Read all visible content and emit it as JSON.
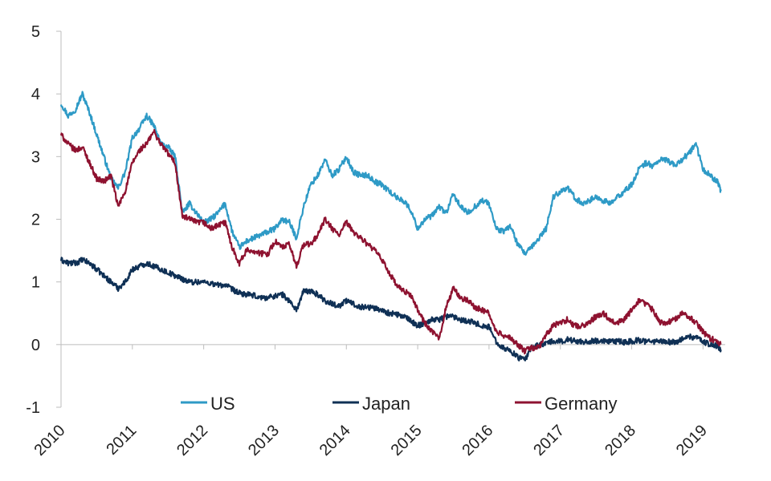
{
  "chart_data": {
    "type": "line",
    "title": "",
    "xlabel": "",
    "ylabel": "",
    "xlim": [
      2010.0,
      2019.3
    ],
    "ylim": [
      -1,
      5
    ],
    "x_ticks": [
      "2010",
      "2011",
      "2012",
      "2013",
      "2014",
      "2015",
      "2016",
      "2017",
      "2018",
      "2019"
    ],
    "y_ticks": [
      "5",
      "4",
      "3",
      "2",
      "1",
      "0",
      "-1"
    ],
    "grid": false,
    "legend_position": "bottom",
    "series": [
      {
        "name": "US",
        "color": "#2E9AC6",
        "x": [
          2010.0,
          2010.1,
          2010.2,
          2010.3,
          2010.4,
          2010.5,
          2010.6,
          2010.7,
          2010.8,
          2010.9,
          2011.0,
          2011.1,
          2011.2,
          2011.3,
          2011.4,
          2011.5,
          2011.6,
          2011.7,
          2011.8,
          2011.9,
          2012.0,
          2012.1,
          2012.2,
          2012.3,
          2012.4,
          2012.5,
          2012.6,
          2012.7,
          2012.8,
          2012.9,
          2013.0,
          2013.1,
          2013.2,
          2013.3,
          2013.4,
          2013.5,
          2013.6,
          2013.7,
          2013.8,
          2013.9,
          2014.0,
          2014.1,
          2014.2,
          2014.3,
          2014.4,
          2014.5,
          2014.6,
          2014.7,
          2014.8,
          2014.9,
          2015.0,
          2015.1,
          2015.2,
          2015.3,
          2015.4,
          2015.5,
          2015.6,
          2015.7,
          2015.8,
          2015.9,
          2016.0,
          2016.1,
          2016.2,
          2016.3,
          2016.4,
          2016.5,
          2016.6,
          2016.7,
          2016.8,
          2016.9,
          2017.0,
          2017.1,
          2017.2,
          2017.3,
          2017.4,
          2017.5,
          2017.6,
          2017.7,
          2017.8,
          2017.9,
          2018.0,
          2018.1,
          2018.2,
          2018.3,
          2018.4,
          2018.5,
          2018.6,
          2018.7,
          2018.8,
          2018.9,
          2019.0,
          2019.1,
          2019.2,
          2019.25
        ],
        "values": [
          3.85,
          3.65,
          3.75,
          4.0,
          3.7,
          3.35,
          3.0,
          2.65,
          2.5,
          2.75,
          3.3,
          3.45,
          3.65,
          3.5,
          3.2,
          3.15,
          3.0,
          2.1,
          2.25,
          2.1,
          1.95,
          2.0,
          2.1,
          2.25,
          1.8,
          1.55,
          1.65,
          1.7,
          1.75,
          1.8,
          1.85,
          2.0,
          1.95,
          1.7,
          2.2,
          2.55,
          2.7,
          2.95,
          2.7,
          2.8,
          3.0,
          2.75,
          2.7,
          2.7,
          2.6,
          2.55,
          2.45,
          2.35,
          2.3,
          2.15,
          1.85,
          2.0,
          2.05,
          2.2,
          2.1,
          2.4,
          2.2,
          2.1,
          2.2,
          2.3,
          2.25,
          1.85,
          1.8,
          1.9,
          1.6,
          1.45,
          1.55,
          1.7,
          1.85,
          2.35,
          2.45,
          2.5,
          2.35,
          2.25,
          2.3,
          2.35,
          2.3,
          2.25,
          2.35,
          2.45,
          2.55,
          2.8,
          2.9,
          2.85,
          2.95,
          2.95,
          2.85,
          2.95,
          3.05,
          3.2,
          2.8,
          2.7,
          2.6,
          2.45
        ]
      },
      {
        "name": "Japan",
        "color": "#0F3055",
        "x": [
          2010.0,
          2010.1,
          2010.2,
          2010.3,
          2010.4,
          2010.5,
          2010.6,
          2010.7,
          2010.8,
          2010.9,
          2011.0,
          2011.1,
          2011.2,
          2011.3,
          2011.4,
          2011.5,
          2011.6,
          2011.7,
          2011.8,
          2011.9,
          2012.0,
          2012.1,
          2012.2,
          2012.3,
          2012.4,
          2012.5,
          2012.6,
          2012.7,
          2012.8,
          2012.9,
          2013.0,
          2013.1,
          2013.2,
          2013.3,
          2013.4,
          2013.5,
          2013.6,
          2013.7,
          2013.8,
          2013.9,
          2014.0,
          2014.1,
          2014.2,
          2014.3,
          2014.4,
          2014.5,
          2014.6,
          2014.7,
          2014.8,
          2014.9,
          2015.0,
          2015.1,
          2015.2,
          2015.3,
          2015.4,
          2015.5,
          2015.6,
          2015.7,
          2015.8,
          2015.9,
          2016.0,
          2016.1,
          2016.2,
          2016.3,
          2016.4,
          2016.5,
          2016.6,
          2016.7,
          2016.8,
          2016.9,
          2017.0,
          2017.1,
          2017.2,
          2017.3,
          2017.4,
          2017.5,
          2017.6,
          2017.7,
          2017.8,
          2017.9,
          2018.0,
          2018.1,
          2018.2,
          2018.3,
          2018.4,
          2018.5,
          2018.6,
          2018.7,
          2018.8,
          2018.9,
          2019.0,
          2019.1,
          2019.2,
          2019.25
        ],
        "values": [
          1.35,
          1.3,
          1.3,
          1.35,
          1.3,
          1.2,
          1.1,
          1.0,
          0.9,
          1.0,
          1.2,
          1.25,
          1.3,
          1.25,
          1.2,
          1.15,
          1.1,
          1.05,
          1.0,
          1.0,
          1.0,
          0.98,
          0.95,
          0.95,
          0.88,
          0.82,
          0.8,
          0.78,
          0.75,
          0.75,
          0.78,
          0.8,
          0.7,
          0.55,
          0.85,
          0.85,
          0.8,
          0.7,
          0.65,
          0.62,
          0.7,
          0.65,
          0.6,
          0.6,
          0.58,
          0.55,
          0.5,
          0.48,
          0.45,
          0.38,
          0.3,
          0.35,
          0.4,
          0.4,
          0.45,
          0.45,
          0.4,
          0.38,
          0.35,
          0.3,
          0.28,
          0.05,
          -0.05,
          -0.1,
          -0.2,
          -0.25,
          -0.05,
          0.0,
          0.02,
          0.05,
          0.05,
          0.08,
          0.06,
          0.05,
          0.05,
          0.06,
          0.05,
          0.04,
          0.05,
          0.04,
          0.05,
          0.07,
          0.05,
          0.05,
          0.05,
          0.04,
          0.04,
          0.08,
          0.12,
          0.12,
          0.05,
          0.0,
          -0.02,
          -0.08
        ]
      },
      {
        "name": "Germany",
        "color": "#8E1230",
        "x": [
          2010.0,
          2010.1,
          2010.2,
          2010.3,
          2010.4,
          2010.5,
          2010.6,
          2010.7,
          2010.8,
          2010.9,
          2011.0,
          2011.1,
          2011.2,
          2011.3,
          2011.4,
          2011.5,
          2011.6,
          2011.7,
          2011.8,
          2011.9,
          2012.0,
          2012.1,
          2012.2,
          2012.3,
          2012.4,
          2012.5,
          2012.6,
          2012.7,
          2012.8,
          2012.9,
          2013.0,
          2013.1,
          2013.2,
          2013.3,
          2013.4,
          2013.5,
          2013.6,
          2013.7,
          2013.8,
          2013.9,
          2014.0,
          2014.1,
          2014.2,
          2014.3,
          2014.4,
          2014.5,
          2014.6,
          2014.7,
          2014.8,
          2014.9,
          2015.0,
          2015.1,
          2015.2,
          2015.3,
          2015.4,
          2015.5,
          2015.6,
          2015.7,
          2015.8,
          2015.9,
          2016.0,
          2016.1,
          2016.2,
          2016.3,
          2016.4,
          2016.5,
          2016.6,
          2016.7,
          2016.8,
          2016.9,
          2017.0,
          2017.1,
          2017.2,
          2017.3,
          2017.4,
          2017.5,
          2017.6,
          2017.7,
          2017.8,
          2017.9,
          2018.0,
          2018.1,
          2018.2,
          2018.3,
          2018.4,
          2018.5,
          2018.6,
          2018.7,
          2018.8,
          2018.9,
          2019.0,
          2019.1,
          2019.2,
          2019.25
        ],
        "values": [
          3.35,
          3.2,
          3.1,
          3.15,
          2.9,
          2.65,
          2.6,
          2.7,
          2.2,
          2.45,
          2.9,
          3.1,
          3.2,
          3.4,
          3.2,
          3.05,
          2.9,
          2.05,
          2.0,
          1.95,
          1.95,
          1.85,
          1.9,
          1.95,
          1.55,
          1.3,
          1.5,
          1.5,
          1.45,
          1.45,
          1.65,
          1.55,
          1.6,
          1.25,
          1.6,
          1.6,
          1.75,
          2.0,
          1.85,
          1.75,
          1.95,
          1.8,
          1.7,
          1.6,
          1.5,
          1.35,
          1.15,
          0.95,
          0.85,
          0.8,
          0.55,
          0.35,
          0.2,
          0.1,
          0.6,
          0.9,
          0.75,
          0.7,
          0.6,
          0.55,
          0.5,
          0.2,
          0.15,
          0.1,
          0.0,
          -0.1,
          -0.05,
          -0.05,
          0.15,
          0.3,
          0.35,
          0.4,
          0.3,
          0.3,
          0.35,
          0.45,
          0.5,
          0.4,
          0.35,
          0.4,
          0.55,
          0.7,
          0.65,
          0.55,
          0.35,
          0.35,
          0.4,
          0.5,
          0.45,
          0.35,
          0.2,
          0.1,
          0.05,
          0.0
        ]
      }
    ]
  }
}
